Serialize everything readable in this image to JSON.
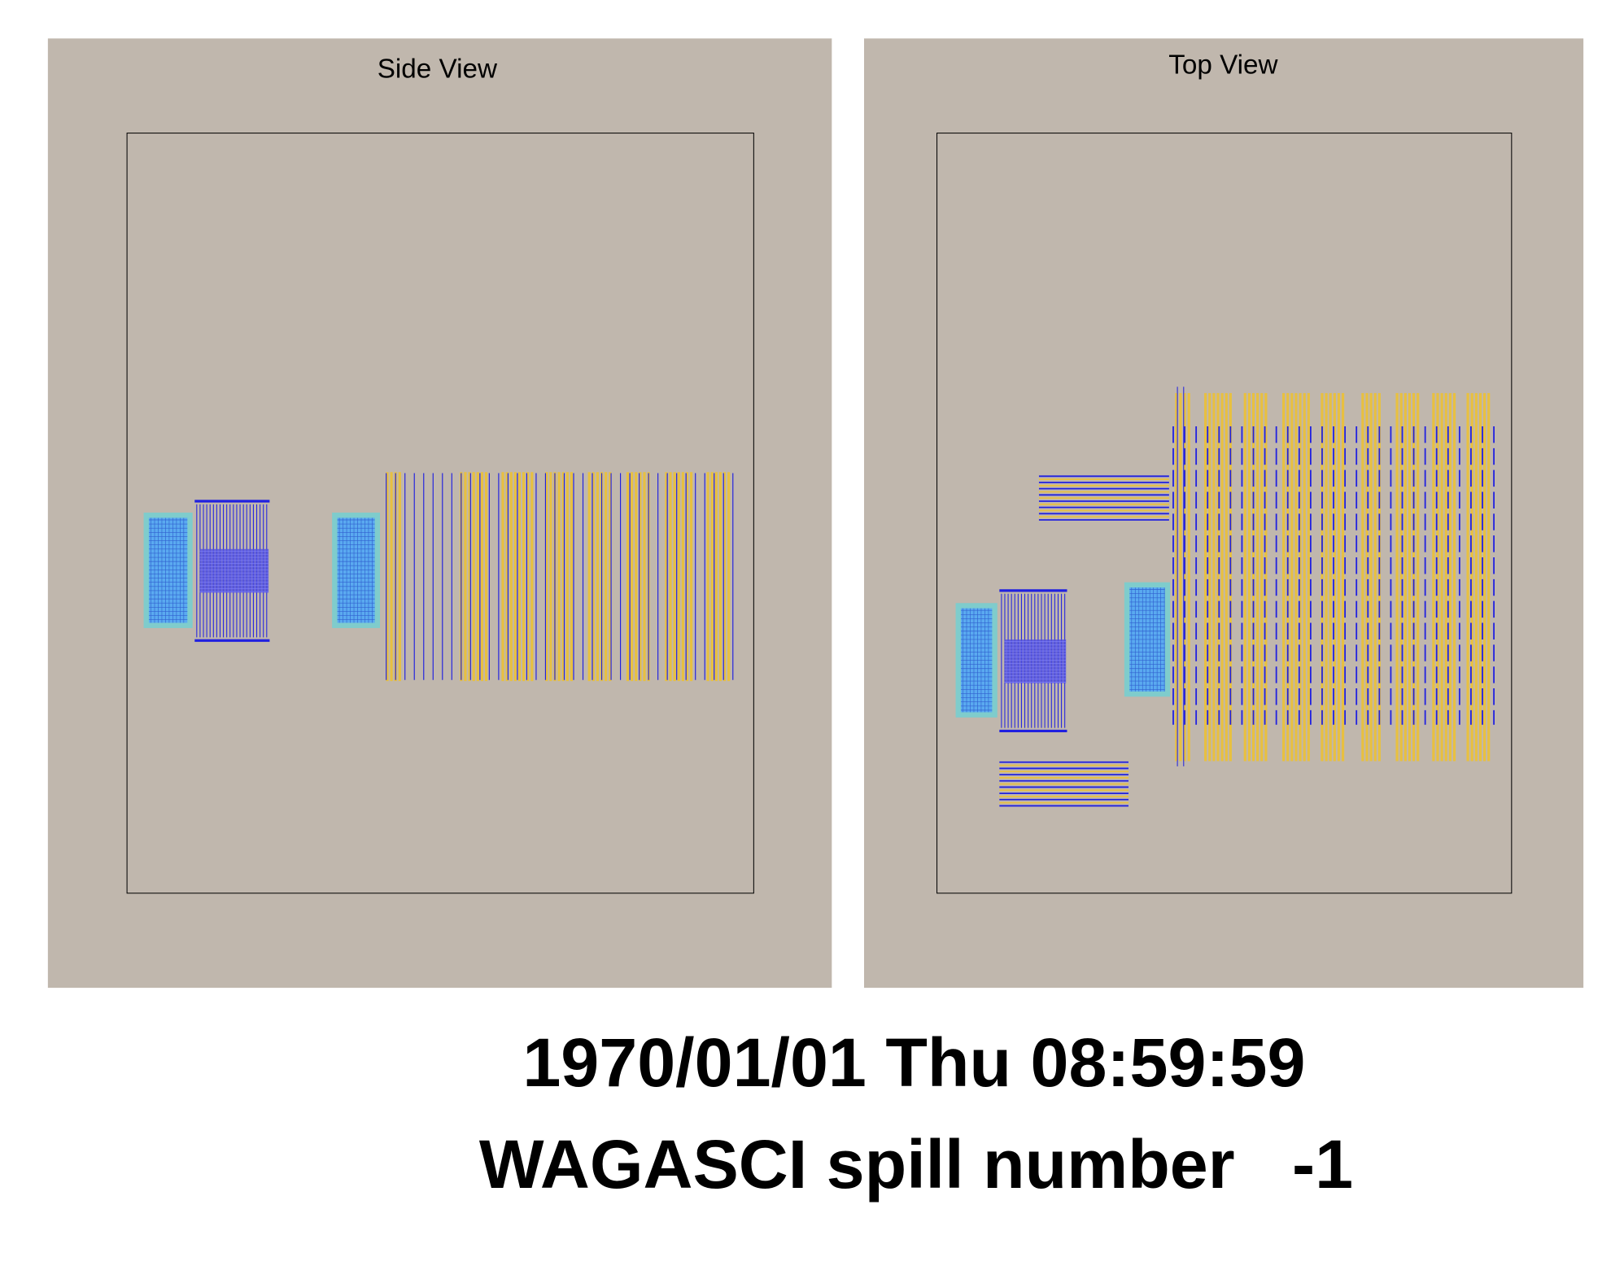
{
  "panels": [
    {
      "title": "Side View"
    },
    {
      "title": "Top View"
    }
  ],
  "footer": {
    "datetime": "1970/01/01 Thu 08:59:59",
    "spill": "WAGASCI spill number   -1"
  }
}
